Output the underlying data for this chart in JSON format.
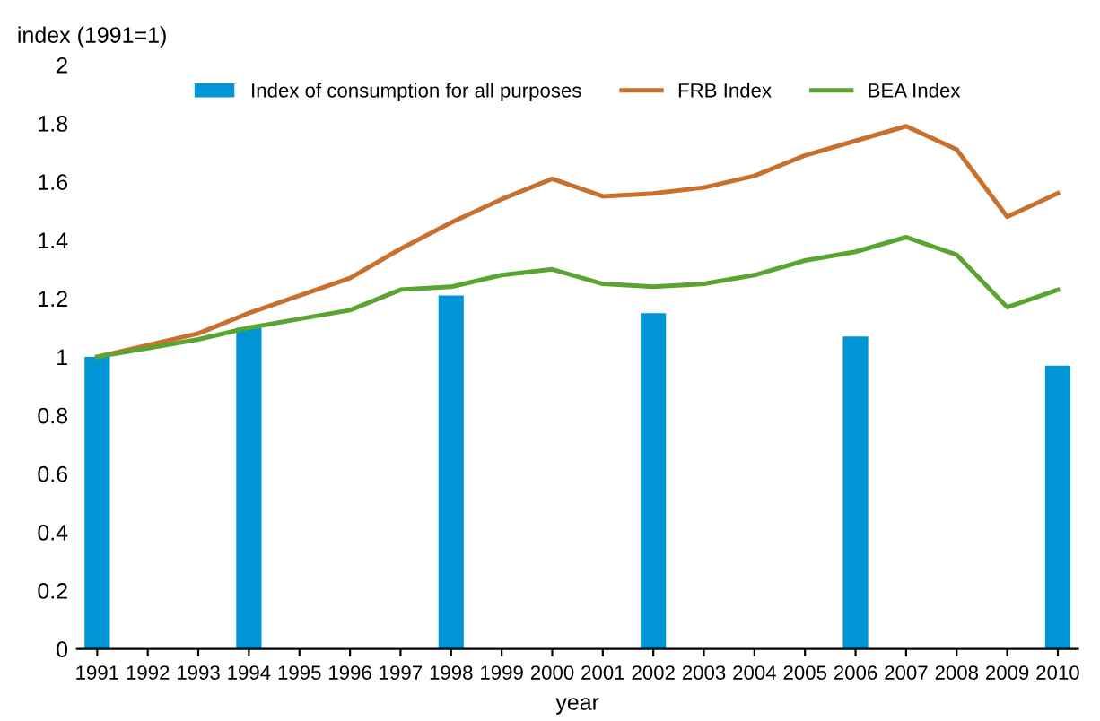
{
  "chart_data": {
    "type": "bar",
    "ylabel": "index (1991=1)",
    "xlabel": "year",
    "categories": [
      "1991",
      "1992",
      "1993",
      "1994",
      "1995",
      "1996",
      "1997",
      "1998",
      "1999",
      "2000",
      "2001",
      "2002",
      "2003",
      "2004",
      "2005",
      "2006",
      "2007",
      "2008",
      "2009",
      "2010"
    ],
    "series": [
      {
        "name": "Index of consumption for all purposes",
        "color": "#0096d6",
        "values": [
          1.0,
          null,
          null,
          1.1,
          null,
          null,
          null,
          1.21,
          null,
          null,
          null,
          1.15,
          null,
          null,
          null,
          1.07,
          null,
          null,
          null,
          0.97
        ]
      },
      {
        "name": "FRB Index",
        "type": "line",
        "color": "#c8702d",
        "values": [
          1.0,
          1.04,
          1.08,
          1.15,
          1.21,
          1.27,
          1.37,
          1.46,
          1.54,
          1.61,
          1.55,
          1.56,
          1.58,
          1.62,
          1.69,
          1.74,
          1.79,
          1.71,
          1.48,
          1.56
        ]
      },
      {
        "name": "BEA Index",
        "type": "line",
        "color": "#5aa532",
        "values": [
          1.0,
          1.03,
          1.06,
          1.1,
          1.13,
          1.16,
          1.23,
          1.24,
          1.28,
          1.3,
          1.25,
          1.24,
          1.25,
          1.28,
          1.33,
          1.36,
          1.41,
          1.35,
          1.17,
          1.23
        ]
      }
    ],
    "ylim": [
      0,
      2
    ],
    "yticks": [
      0,
      0.2,
      0.4,
      0.6,
      0.8,
      1,
      1.2,
      1.4,
      1.6,
      1.8,
      2
    ],
    "grid": false,
    "legend": "top"
  }
}
